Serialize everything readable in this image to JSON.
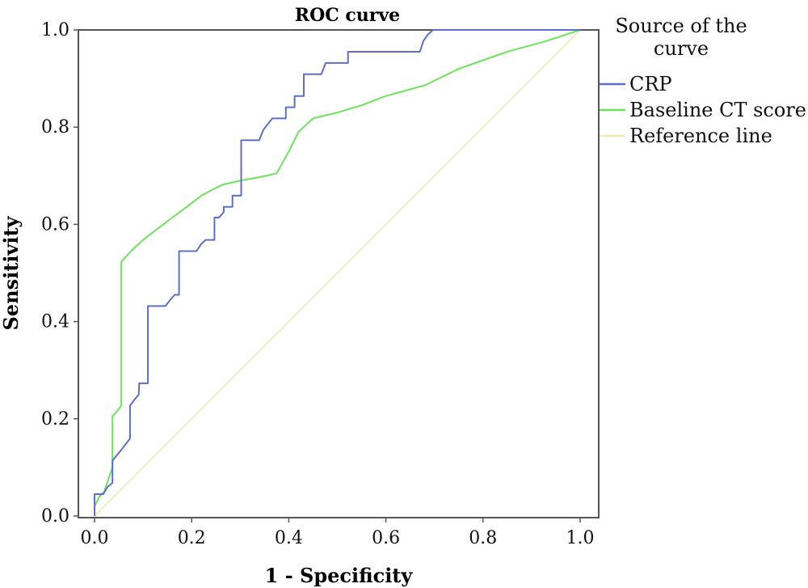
{
  "chart_data": {
    "type": "line",
    "title": "ROC curve",
    "xlabel": "1 - Specificity",
    "ylabel": "Sensitivity",
    "xlim": [
      0,
      1
    ],
    "ylim": [
      0,
      1
    ],
    "xticks": [
      "0.0",
      "0.2",
      "0.4",
      "0.6",
      "0.8",
      "1.0"
    ],
    "yticks": [
      "0.0",
      "0.2",
      "0.4",
      "0.6",
      "0.8",
      "1.0"
    ],
    "grid": false,
    "legend": {
      "title_lines": [
        "Source of the",
        "curve"
      ],
      "placement": "right"
    },
    "series": [
      {
        "name": "CRP",
        "color": "#5b6fc9",
        "x": [
          0,
          0,
          0.009,
          0.018,
          0.027,
          0.037,
          0.037,
          0.046,
          0.055,
          0.064,
          0.073,
          0.073,
          0.082,
          0.091,
          0.092,
          0.1,
          0.11,
          0.11,
          0.128,
          0.146,
          0.156,
          0.165,
          0.174,
          0.174,
          0.183,
          0.201,
          0.21,
          0.22,
          0.229,
          0.238,
          0.247,
          0.247,
          0.256,
          0.266,
          0.266,
          0.284,
          0.284,
          0.293,
          0.302,
          0.302,
          0.33,
          0.339,
          0.348,
          0.366,
          0.376,
          0.385,
          0.394,
          0.394,
          0.412,
          0.412,
          0.421,
          0.431,
          0.431,
          0.44,
          0.449,
          0.467,
          0.476,
          0.495,
          0.504,
          0.522,
          0.522,
          0.541,
          0.55,
          0.568,
          0.586,
          0.6,
          0.623,
          0.65,
          0.67,
          0.677,
          0.686,
          0.697,
          1.0
        ],
        "y": [
          0,
          0.045,
          0.045,
          0.045,
          0.06,
          0.068,
          0.114,
          0.125,
          0.136,
          0.148,
          0.159,
          0.227,
          0.239,
          0.25,
          0.273,
          0.273,
          0.273,
          0.432,
          0.432,
          0.432,
          0.445,
          0.455,
          0.455,
          0.545,
          0.545,
          0.545,
          0.545,
          0.56,
          0.568,
          0.568,
          0.568,
          0.614,
          0.614,
          0.625,
          0.636,
          0.636,
          0.659,
          0.659,
          0.659,
          0.773,
          0.773,
          0.773,
          0.795,
          0.818,
          0.818,
          0.818,
          0.818,
          0.841,
          0.841,
          0.864,
          0.864,
          0.864,
          0.909,
          0.909,
          0.909,
          0.909,
          0.932,
          0.932,
          0.932,
          0.932,
          0.955,
          0.955,
          0.955,
          0.955,
          0.955,
          0.955,
          0.955,
          0.955,
          0.955,
          0.977,
          0.99,
          1.0,
          1.0
        ]
      },
      {
        "name": "Baseline CT score",
        "color": "#6be35b",
        "x": [
          0,
          0.0,
          0.01,
          0.02,
          0.03,
          0.037,
          0.037,
          0.046,
          0.055,
          0.055,
          0.075,
          0.1,
          0.13,
          0.16,
          0.19,
          0.22,
          0.25,
          0.265,
          0.3,
          0.34,
          0.375,
          0.4,
          0.42,
          0.45,
          0.5,
          0.55,
          0.6,
          0.68,
          0.75,
          0.85,
          0.93,
          1.0
        ],
        "y": [
          0,
          0.02,
          0.04,
          0.05,
          0.08,
          0.1,
          0.205,
          0.215,
          0.227,
          0.523,
          0.545,
          0.568,
          0.591,
          0.614,
          0.636,
          0.659,
          0.675,
          0.682,
          0.69,
          0.697,
          0.705,
          0.75,
          0.79,
          0.818,
          0.83,
          0.845,
          0.864,
          0.886,
          0.92,
          0.955,
          0.977,
          1.0
        ]
      },
      {
        "name": "Reference line",
        "color": "#eeecb4",
        "x": [
          0,
          1
        ],
        "y": [
          0,
          1
        ]
      }
    ]
  }
}
